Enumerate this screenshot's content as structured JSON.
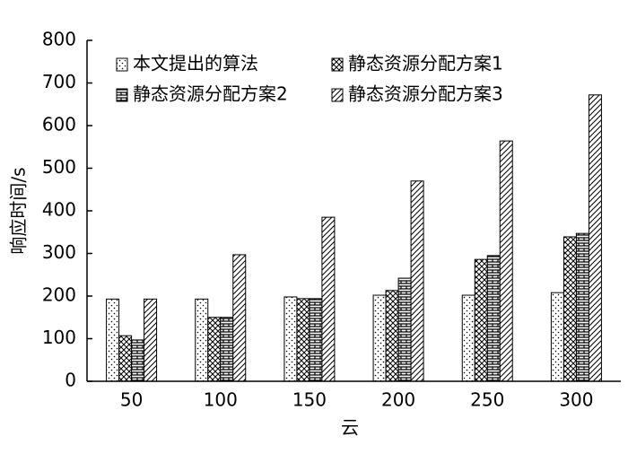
{
  "chart_data": {
    "type": "bar",
    "x_label": "云",
    "y_label": "响应时间/s",
    "categories": [
      "50",
      "100",
      "150",
      "200",
      "250",
      "300"
    ],
    "series": [
      {
        "name": "本文提出的算法",
        "color": "#000000",
        "values": [
          193,
          193,
          198,
          202,
          202,
          208
        ]
      },
      {
        "name": "静态资源分配方案1",
        "color": "#000000",
        "values": [
          107,
          150,
          194,
          213,
          286,
          339
        ]
      },
      {
        "name": "静态资源分配方案2",
        "color": "#000000",
        "values": [
          97,
          150,
          194,
          242,
          295,
          347
        ]
      },
      {
        "name": "静态资源分配方案3",
        "color": "#000000",
        "values": [
          193,
          297,
          385,
          470,
          564,
          672
        ]
      }
    ],
    "ylim": [
      0,
      800
    ],
    "yticks": [
      0,
      100,
      200,
      300,
      400,
      500,
      600,
      700,
      800
    ]
  }
}
